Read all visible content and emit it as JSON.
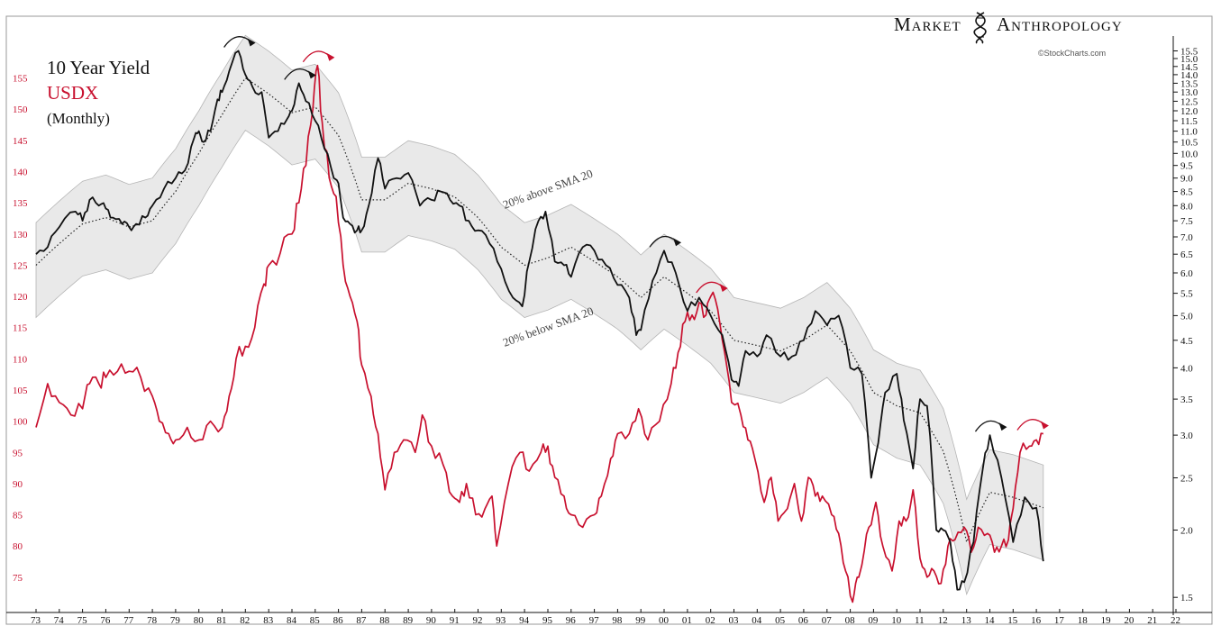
{
  "brand": {
    "word1": "Market",
    "word2": "Anthropology",
    "credit": "©StockCharts.com",
    "logo_icon": "dna-helix-icon"
  },
  "legend": {
    "title": "10 Year Yield",
    "usdx": "USDX",
    "period": "(Monthly)"
  },
  "chart_data": {
    "type": "line",
    "x_axis": {
      "ticks": [
        "73",
        "74",
        "75",
        "76",
        "77",
        "78",
        "79",
        "80",
        "81",
        "82",
        "83",
        "84",
        "85",
        "86",
        "87",
        "88",
        "89",
        "90",
        "91",
        "92",
        "93",
        "94",
        "95",
        "96",
        "97",
        "98",
        "99",
        "00",
        "01",
        "02",
        "03",
        "04",
        "05",
        "06",
        "07",
        "08",
        "09",
        "10",
        "11",
        "12",
        "13",
        "14",
        "15",
        "16",
        "17",
        "18",
        "19",
        "20",
        "21",
        "22"
      ],
      "range": [
        1973,
        2022
      ]
    },
    "y_left": {
      "label": "USDX",
      "color": "#c8102e",
      "ticks": [
        155,
        150,
        145,
        140,
        135,
        130,
        125,
        120,
        115,
        110,
        105,
        100,
        95,
        90,
        85,
        80,
        75
      ],
      "range": [
        70.5,
        161
      ]
    },
    "y_right": {
      "label": "10 Year Yield",
      "scale": "log",
      "ticks": [
        "15.5",
        "15.0",
        "14.5",
        "14.0",
        "13.5",
        "13.0",
        "12.5",
        "12.0",
        "11.5",
        "11.0",
        "10.5",
        "10.0",
        "9.5",
        "9.0",
        "8.5",
        "8.0",
        "7.5",
        "7.0",
        "6.5",
        "6.0",
        "5.5",
        "5.0",
        "4.5",
        "4.0",
        "3.5",
        "3.0",
        "2.5",
        "2.0",
        "1.5"
      ],
      "range": [
        1.45,
        16.2
      ]
    },
    "annotations": {
      "upper_band": "20% above SMA 20",
      "lower_band": "20% below SMA 20"
    },
    "series": [
      {
        "name": "10 Year Yield",
        "axis": "right",
        "color": "#111111",
        "x": [
          1973.0,
          1973.5,
          1974.0,
          1974.7,
          1975.0,
          1975.3,
          1975.7,
          1976.0,
          1976.3,
          1976.7,
          1977.0,
          1977.3,
          1977.7,
          1978.0,
          1978.5,
          1979.0,
          1979.4,
          1979.8,
          1980.0,
          1980.2,
          1980.5,
          1980.8,
          1981.0,
          1981.3,
          1981.7,
          1982.0,
          1982.3,
          1982.7,
          1983.0,
          1983.4,
          1983.8,
          1984.0,
          1984.3,
          1984.6,
          1985.0,
          1985.4,
          1985.8,
          1986.0,
          1986.2,
          1986.5,
          1986.8,
          1987.0,
          1987.3,
          1987.7,
          1988.0,
          1988.5,
          1989.0,
          1989.5,
          1990.0,
          1990.4,
          1990.8,
          1991.2,
          1991.6,
          1992.0,
          1992.5,
          1993.0,
          1993.5,
          1993.9,
          1994.2,
          1994.6,
          1994.9,
          1995.3,
          1995.7,
          1996.0,
          1996.5,
          1997.0,
          1997.5,
          1998.0,
          1998.5,
          1998.8,
          1999.0,
          1999.5,
          2000.0,
          2000.5,
          2001.0,
          2001.5,
          2002.0,
          2002.5,
          2002.9,
          2003.2,
          2003.5,
          2004.0,
          2004.4,
          2005.0,
          2005.5,
          2006.0,
          2006.5,
          2007.0,
          2007.5,
          2008.0,
          2008.5,
          2008.9,
          2009.2,
          2009.5,
          2010.0,
          2010.3,
          2010.7,
          2011.0,
          2011.3,
          2011.7,
          2012.0,
          2012.3,
          2012.6,
          2012.9,
          2013.3,
          2013.7,
          2014.0,
          2014.5,
          2015.0,
          2015.5,
          2016.0,
          2016.3
        ],
        "values": [
          6.5,
          6.7,
          7.3,
          7.8,
          7.5,
          8.2,
          8.0,
          7.9,
          7.6,
          7.4,
          7.3,
          7.4,
          7.6,
          8.0,
          8.6,
          9.0,
          9.3,
          10.7,
          11.0,
          10.5,
          11.0,
          12.6,
          13.0,
          14.2,
          15.5,
          14.0,
          13.3,
          13.0,
          10.7,
          11.0,
          11.6,
          12.0,
          13.5,
          12.5,
          11.5,
          10.2,
          9.0,
          8.8,
          7.6,
          7.4,
          7.2,
          7.2,
          8.0,
          9.8,
          8.6,
          9.0,
          9.2,
          8.0,
          8.2,
          8.5,
          8.2,
          8.0,
          7.5,
          7.2,
          6.8,
          6.1,
          5.4,
          5.2,
          6.3,
          7.5,
          7.8,
          6.3,
          6.2,
          5.9,
          6.7,
          6.6,
          6.2,
          5.7,
          5.4,
          4.6,
          4.7,
          5.8,
          6.6,
          6.0,
          5.1,
          5.4,
          5.0,
          4.6,
          3.8,
          3.7,
          4.3,
          4.2,
          4.6,
          4.2,
          4.2,
          4.5,
          5.1,
          4.8,
          5.0,
          4.0,
          3.9,
          2.5,
          2.9,
          3.6,
          3.9,
          3.2,
          2.6,
          3.5,
          3.4,
          2.0,
          2.0,
          1.9,
          1.55,
          1.6,
          1.9,
          2.6,
          3.0,
          2.5,
          1.9,
          2.3,
          2.2,
          1.75
        ]
      },
      {
        "name": "USDX",
        "axis": "left",
        "color": "#c8102e",
        "x": [
          1973.0,
          1973.5,
          1974.0,
          1974.5,
          1975.0,
          1975.3,
          1975.7,
          1976.0,
          1976.5,
          1977.0,
          1977.5,
          1978.0,
          1978.3,
          1978.7,
          1979.0,
          1979.5,
          1980.0,
          1980.5,
          1981.0,
          1981.3,
          1981.6,
          1982.0,
          1982.4,
          1982.8,
          1983.0,
          1983.5,
          1984.0,
          1984.3,
          1984.6,
          1984.9,
          1985.1,
          1985.3,
          1985.6,
          1985.9,
          1986.2,
          1986.5,
          1986.8,
          1987.0,
          1987.4,
          1987.7,
          1988.0,
          1988.4,
          1988.8,
          1989.3,
          1989.6,
          1990.0,
          1990.5,
          1990.9,
          1991.2,
          1991.5,
          1991.9,
          1992.3,
          1992.6,
          1992.8,
          1993.3,
          1993.8,
          1994.2,
          1994.7,
          1995.0,
          1995.3,
          1995.7,
          1996.0,
          1996.5,
          1997.0,
          1997.3,
          1997.7,
          1998.0,
          1998.5,
          1998.9,
          1999.3,
          1999.8,
          2000.3,
          2000.6,
          2000.9,
          2001.2,
          2001.5,
          2001.8,
          2002.0,
          2002.3,
          2002.6,
          2002.9,
          2003.3,
          2003.6,
          2003.9,
          2004.3,
          2004.6,
          2004.9,
          2005.3,
          2005.6,
          2005.9,
          2006.2,
          2006.5,
          2006.8,
          2007.2,
          2007.5,
          2007.8,
          2008.1,
          2008.3,
          2008.5,
          2008.8,
          2009.1,
          2009.4,
          2009.8,
          2010.1,
          2010.4,
          2010.7,
          2011.0,
          2011.3,
          2011.6,
          2011.9,
          2012.2,
          2012.5,
          2012.9,
          2013.2,
          2013.5,
          2013.9,
          2014.2,
          2014.5,
          2014.8,
          2015.0,
          2015.3,
          2015.7,
          2016.0,
          2016.3
        ],
        "values": [
          99,
          106,
          103,
          101,
          102,
          106,
          106,
          107,
          108,
          108,
          107,
          104,
          100,
          98,
          97,
          99,
          97,
          100,
          99,
          104,
          110,
          112,
          115,
          122,
          125,
          127,
          130,
          135,
          141,
          150,
          157,
          148,
          139,
          136,
          125,
          120,
          116,
          109,
          104,
          98,
          89,
          95,
          97,
          95,
          101,
          96,
          93,
          88,
          87,
          90,
          85,
          86,
          88,
          80,
          90,
          95,
          92,
          95,
          96,
          91,
          88,
          85,
          83,
          85,
          88,
          94,
          98,
          98,
          102,
          97,
          100,
          106,
          111,
          116,
          117,
          119,
          117,
          120,
          118,
          111,
          103,
          101,
          97,
          94,
          87,
          91,
          84,
          86,
          90,
          84,
          91,
          88,
          88,
          85,
          82,
          76,
          71,
          75,
          77,
          83,
          87,
          80,
          76,
          84,
          84,
          89,
          78,
          75,
          76,
          74,
          80,
          81,
          83,
          79,
          83,
          82,
          79,
          80,
          81,
          86,
          95,
          96,
          97,
          98
        ]
      },
      {
        "name": "SMA 20",
        "axis": "right",
        "color": "#222222",
        "x": [
          1973,
          1974,
          1975,
          1976,
          1977,
          1978,
          1979,
          1980,
          1981,
          1982,
          1983,
          1984,
          1985,
          1986,
          1987,
          1988,
          1989,
          1990,
          1991,
          1992,
          1993,
          1994,
          1995,
          1996,
          1997,
          1998,
          1999,
          2000,
          2001,
          2002,
          2003,
          2004,
          2005,
          2006,
          2007,
          2008,
          2009,
          2010,
          2011,
          2012,
          2013,
          2014,
          2015,
          2016.3
        ],
        "values": [
          6.2,
          6.8,
          7.4,
          7.6,
          7.3,
          7.5,
          8.5,
          10.0,
          11.8,
          13.8,
          12.9,
          11.9,
          12.2,
          10.8,
          8.2,
          8.2,
          8.8,
          8.6,
          8.3,
          7.6,
          6.7,
          6.2,
          6.4,
          6.7,
          6.3,
          5.9,
          5.4,
          5.9,
          5.5,
          5.1,
          4.5,
          4.4,
          4.3,
          4.5,
          4.8,
          4.3,
          3.6,
          3.4,
          3.3,
          2.8,
          1.9,
          2.35,
          2.3,
          2.2
        ]
      }
    ]
  }
}
